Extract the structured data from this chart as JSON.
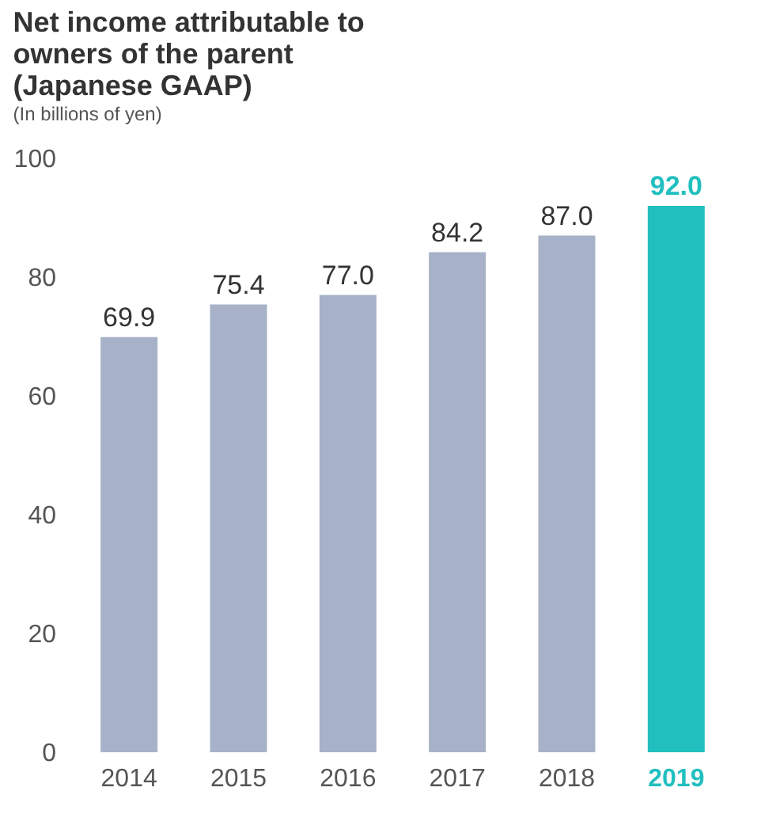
{
  "chart_data": {
    "type": "bar",
    "title": "Net income attributable to owners of the parent (Japanese GAAP)",
    "subtitle": "(In billions of yen)",
    "categories": [
      "2014",
      "2015",
      "2016",
      "2017",
      "2018",
      "2019"
    ],
    "values": [
      69.9,
      75.4,
      77.0,
      84.2,
      87.0,
      92.0
    ],
    "colors": [
      "#a7b1c8",
      "#a7b1c8",
      "#a7b1c8",
      "#a7b1c8",
      "#a7b1c8",
      "#22bfbf"
    ],
    "ylim": [
      0,
      100
    ],
    "yticks": [
      0,
      20,
      40,
      60,
      80,
      100
    ],
    "grid": false,
    "value_labels": [
      "69.9",
      "75.4",
      "77.0",
      "84.2",
      "87.0",
      "92.0"
    ]
  }
}
